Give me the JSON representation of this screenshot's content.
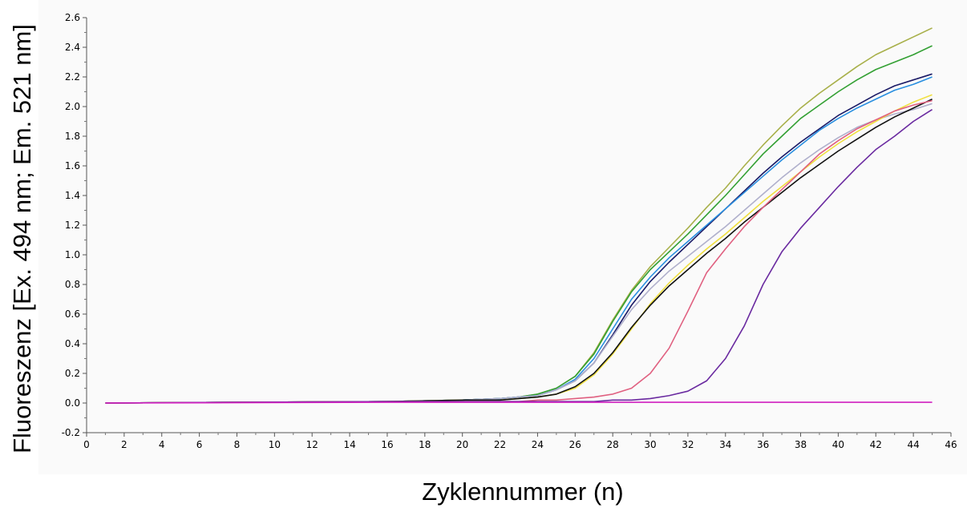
{
  "chart_data": {
    "type": "line",
    "title": "",
    "xlabel": "Zyklennummer (n)",
    "ylabel": "Fluoreszenz [Ex. 494 nm; Em. 521 nm]",
    "xlim": [
      0,
      46
    ],
    "ylim": [
      -0.2,
      2.6
    ],
    "xticks": [
      "0",
      "2",
      "4",
      "6",
      "8",
      "10",
      "12",
      "14",
      "16",
      "18",
      "20",
      "22",
      "24",
      "26",
      "28",
      "30",
      "32",
      "34",
      "36",
      "38",
      "40",
      "42",
      "44",
      "46"
    ],
    "yticks": [
      "-0.2",
      "0.0",
      "0.2",
      "0.4",
      "0.6",
      "0.8",
      "1.0",
      "1.2",
      "1.4",
      "1.6",
      "1.8",
      "2.0",
      "2.2",
      "2.4",
      "2.6"
    ],
    "grid": false,
    "legend": "none",
    "colors": [
      "#a8b04a",
      "#33a033",
      "#1a1a66",
      "#2a8fe0",
      "#b0b0cc",
      "#f0e040",
      "#111111",
      "#e06080",
      "#6a2aa0",
      "#d020c0"
    ],
    "x": [
      1,
      16,
      20,
      22,
      23,
      24,
      25,
      26,
      27,
      28,
      29,
      30,
      31,
      32,
      33,
      34,
      35,
      36,
      37,
      38,
      39,
      40,
      41,
      42,
      43,
      44,
      45
    ],
    "series": [
      {
        "values": [
          0,
          0.01,
          0.02,
          0.03,
          0.04,
          0.06,
          0.1,
          0.18,
          0.34,
          0.56,
          0.76,
          0.92,
          1.05,
          1.18,
          1.32,
          1.45,
          1.6,
          1.74,
          1.87,
          1.99,
          2.09,
          2.18,
          2.27,
          2.35,
          2.41,
          2.47,
          2.53
        ]
      },
      {
        "values": [
          0,
          0.01,
          0.02,
          0.03,
          0.04,
          0.06,
          0.1,
          0.18,
          0.33,
          0.55,
          0.75,
          0.9,
          1.02,
          1.14,
          1.27,
          1.4,
          1.54,
          1.68,
          1.8,
          1.92,
          2.01,
          2.1,
          2.18,
          2.25,
          2.3,
          2.35,
          2.41
        ]
      },
      {
        "values": [
          0,
          0.01,
          0.02,
          0.03,
          0.04,
          0.05,
          0.09,
          0.15,
          0.27,
          0.46,
          0.66,
          0.82,
          0.95,
          1.07,
          1.19,
          1.31,
          1.43,
          1.55,
          1.66,
          1.76,
          1.85,
          1.94,
          2.01,
          2.08,
          2.14,
          2.18,
          2.22
        ]
      },
      {
        "values": [
          0,
          0.01,
          0.02,
          0.03,
          0.04,
          0.05,
          0.09,
          0.16,
          0.3,
          0.5,
          0.7,
          0.85,
          0.98,
          1.09,
          1.2,
          1.31,
          1.42,
          1.53,
          1.64,
          1.74,
          1.84,
          1.92,
          1.99,
          2.05,
          2.11,
          2.15,
          2.2
        ]
      },
      {
        "values": [
          0,
          0.01,
          0.02,
          0.03,
          0.04,
          0.05,
          0.09,
          0.15,
          0.27,
          0.45,
          0.63,
          0.77,
          0.89,
          0.99,
          1.09,
          1.19,
          1.3,
          1.41,
          1.52,
          1.62,
          1.71,
          1.79,
          1.86,
          1.91,
          1.95,
          1.98,
          2.02
        ]
      },
      {
        "values": [
          0,
          0.01,
          0.02,
          0.02,
          0.03,
          0.04,
          0.06,
          0.1,
          0.19,
          0.33,
          0.5,
          0.67,
          0.81,
          0.93,
          1.04,
          1.14,
          1.25,
          1.36,
          1.46,
          1.56,
          1.66,
          1.75,
          1.83,
          1.9,
          1.97,
          2.03,
          2.08
        ]
      },
      {
        "values": [
          0,
          0.01,
          0.02,
          0.02,
          0.03,
          0.04,
          0.06,
          0.11,
          0.2,
          0.34,
          0.51,
          0.66,
          0.79,
          0.9,
          1.01,
          1.11,
          1.22,
          1.32,
          1.42,
          1.52,
          1.61,
          1.7,
          1.78,
          1.86,
          1.93,
          1.99,
          2.05
        ]
      },
      {
        "values": [
          0,
          0.01,
          0.01,
          0.01,
          0.01,
          0.02,
          0.02,
          0.03,
          0.04,
          0.06,
          0.1,
          0.2,
          0.37,
          0.62,
          0.88,
          1.04,
          1.19,
          1.32,
          1.44,
          1.56,
          1.68,
          1.77,
          1.85,
          1.91,
          1.97,
          2.01,
          2.04
        ]
      },
      {
        "values": [
          0,
          0.01,
          0.01,
          0.01,
          0.01,
          0.01,
          0.01,
          0.01,
          0.01,
          0.02,
          0.02,
          0.03,
          0.05,
          0.08,
          0.15,
          0.3,
          0.52,
          0.8,
          1.02,
          1.18,
          1.32,
          1.46,
          1.59,
          1.71,
          1.8,
          1.9,
          1.98
        ]
      },
      {
        "values": [
          0,
          0.005,
          0.005,
          0.005,
          0.005,
          0.005,
          0.005,
          0.005,
          0.005,
          0.005,
          0.005,
          0.005,
          0.005,
          0.005,
          0.005,
          0.005,
          0.005,
          0.005,
          0.005,
          0.005,
          0.005,
          0.005,
          0.005,
          0.005,
          0.005,
          0.005,
          0.005
        ]
      }
    ]
  }
}
